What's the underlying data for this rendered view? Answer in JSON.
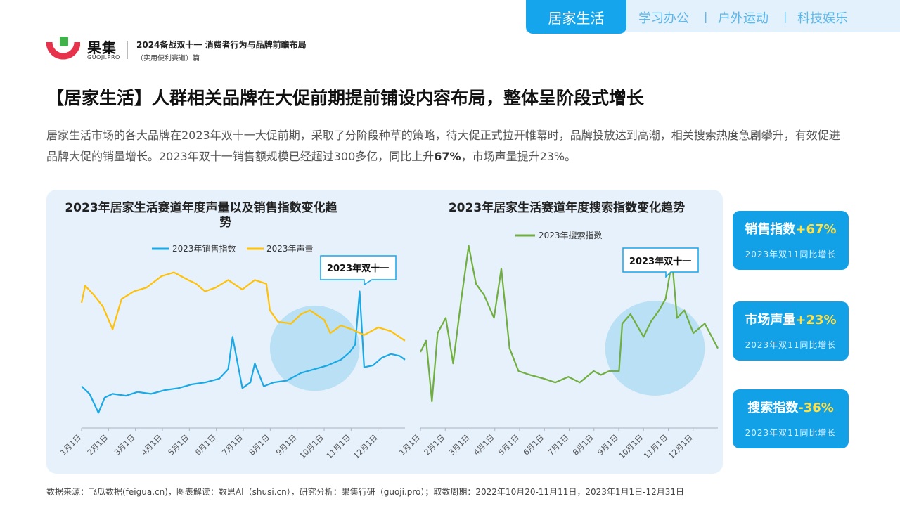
{
  "header": {
    "brand_cn": "果集",
    "brand_en": "GUOJI.PRO",
    "report_title": "2024备战双十一 消费者行为与品牌前瞻布局",
    "report_subtitle": "（实用便利赛道）篇",
    "tabs": [
      {
        "label": "居家生活",
        "active": true
      },
      {
        "label": "学习办公",
        "active": false
      },
      {
        "label": "户外运动",
        "active": false
      },
      {
        "label": "科技娱乐",
        "active": false
      }
    ],
    "separator": "|"
  },
  "page_title": "【居家生活】人群相关品牌在大促前期提前铺设内容布局，整体呈阶段式增长",
  "intro": {
    "part1": "居家生活市场的各大品牌在2023年双十一大促前期，采取了分阶段种草的策略，待大促正式拉开帷幕时，品牌投放达到高潮，相关搜索热度急剧攀升，有效促进品牌大促的销量增长。2023年双十一销售额规模已经超过300多亿，同比上升",
    "highlight": "67%",
    "part2": "，市场声量提升23%。"
  },
  "colors": {
    "accent": "#14a5ec",
    "sales": "#1ba9e6",
    "volume": "#ffc107",
    "search": "#6fae3f",
    "highlight_circle": "#a9daf3",
    "stat_value": "#ffe24a"
  },
  "chart_data": [
    {
      "type": "line",
      "title": "2023年居家生活赛道年度声量以及销售指数变化趋势",
      "x_ticks": [
        "1月1日",
        "2月1日",
        "3月1日",
        "4月1日",
        "5月1日",
        "6月1日",
        "7月1日",
        "8月1日",
        "9月1日",
        "10月1日",
        "11月1日",
        "12月1日"
      ],
      "x_range": [
        "2023-01-01",
        "2023-12-31"
      ],
      "grid": false,
      "legend": "top-center",
      "annotation": "2023年双十一",
      "highlight_range": [
        "2023-08-01",
        "2023-11-10"
      ],
      "series": [
        {
          "name": "2023年销售指数",
          "x": [
            "2023-01-01",
            "2023-01-10",
            "2023-01-20",
            "2023-01-27",
            "2023-02-05",
            "2023-02-20",
            "2023-03-05",
            "2023-03-20",
            "2023-04-05",
            "2023-04-20",
            "2023-05-05",
            "2023-05-20",
            "2023-06-05",
            "2023-06-15",
            "2023-06-20",
            "2023-07-01",
            "2023-07-10",
            "2023-07-15",
            "2023-07-25",
            "2023-08-05",
            "2023-08-20",
            "2023-09-05",
            "2023-09-20",
            "2023-10-05",
            "2023-10-20",
            "2023-10-30",
            "2023-11-05",
            "2023-11-10",
            "2023-11-15",
            "2023-11-25",
            "2023-12-05",
            "2023-12-15",
            "2023-12-25",
            "2023-12-31"
          ],
          "values": [
            22,
            18,
            8,
            16,
            18,
            17,
            19,
            18,
            20,
            21,
            23,
            24,
            26,
            31,
            48,
            21,
            24,
            34,
            22,
            24,
            25,
            29,
            31,
            33,
            36,
            40,
            44,
            72,
            32,
            33,
            37,
            39,
            38,
            36
          ]
        },
        {
          "name": "2023年声量",
          "x": [
            "2023-01-01",
            "2023-01-05",
            "2023-01-15",
            "2023-01-25",
            "2023-02-05",
            "2023-02-15",
            "2023-03-01",
            "2023-03-15",
            "2023-04-01",
            "2023-04-15",
            "2023-05-01",
            "2023-05-10",
            "2023-05-20",
            "2023-06-01",
            "2023-06-15",
            "2023-07-01",
            "2023-07-15",
            "2023-07-28",
            "2023-08-01",
            "2023-08-10",
            "2023-08-25",
            "2023-09-05",
            "2023-09-15",
            "2023-10-01",
            "2023-10-08",
            "2023-10-20",
            "2023-11-01",
            "2023-11-15",
            "2023-12-01",
            "2023-12-15",
            "2023-12-31"
          ],
          "values": [
            66,
            75,
            70,
            64,
            52,
            68,
            72,
            74,
            80,
            82,
            78,
            76,
            72,
            74,
            78,
            73,
            78,
            76,
            62,
            56,
            55,
            60,
            62,
            57,
            50,
            54,
            52,
            49,
            53,
            51,
            46
          ]
        }
      ]
    },
    {
      "type": "line",
      "title": "2023年居家生活赛道年度搜索指数变化趋势",
      "x_ticks": [
        "1月1日",
        "2月1日",
        "3月1日",
        "4月1日",
        "5月1日",
        "6月1日",
        "7月1日",
        "8月1日",
        "9月1日",
        "10月1日",
        "11月1日",
        "12月1日"
      ],
      "x_range": [
        "2023-01-01",
        "2023-12-31"
      ],
      "grid": false,
      "legend": "top-left",
      "annotation": "2023年双十一",
      "highlight_range": [
        "2023-08-15",
        "2023-12-15"
      ],
      "series": [
        {
          "name": "2023年搜索指数",
          "x": [
            "2023-01-01",
            "2023-01-08",
            "2023-01-15",
            "2023-01-22",
            "2023-02-01",
            "2023-02-10",
            "2023-02-20",
            "2023-03-01",
            "2023-03-10",
            "2023-03-20",
            "2023-04-01",
            "2023-04-10",
            "2023-04-20",
            "2023-05-01",
            "2023-05-15",
            "2023-06-01",
            "2023-06-15",
            "2023-07-01",
            "2023-07-15",
            "2023-08-01",
            "2023-08-10",
            "2023-08-20",
            "2023-09-01",
            "2023-09-05",
            "2023-09-15",
            "2023-10-01",
            "2023-10-10",
            "2023-10-20",
            "2023-10-28",
            "2023-11-05",
            "2023-11-11",
            "2023-11-20",
            "2023-12-01",
            "2023-12-15",
            "2023-12-31"
          ],
          "values": [
            40,
            46,
            14,
            50,
            58,
            34,
            68,
            96,
            76,
            70,
            58,
            84,
            42,
            30,
            28,
            26,
            24,
            27,
            24,
            30,
            28,
            30,
            30,
            55,
            60,
            48,
            56,
            62,
            68,
            88,
            58,
            62,
            50,
            55,
            42
          ]
        }
      ]
    }
  ],
  "stats": [
    {
      "label": "销售指数",
      "value": "+67%",
      "note": "2023年双11同比增长"
    },
    {
      "label": "市场声量",
      "value": "+23%",
      "note": "2023年双11同比增长"
    },
    {
      "label": "搜索指数",
      "value": "-36%",
      "note": "2023年双11同比增长"
    }
  ],
  "source": "数据来源：飞瓜数据(feigua.cn)，图表解读：数思AI（shusi.cn），研究分析：果集行研（guoji.pro）；取数周期：2022年10月20-11月11日，2023年1月1日-12月31日"
}
